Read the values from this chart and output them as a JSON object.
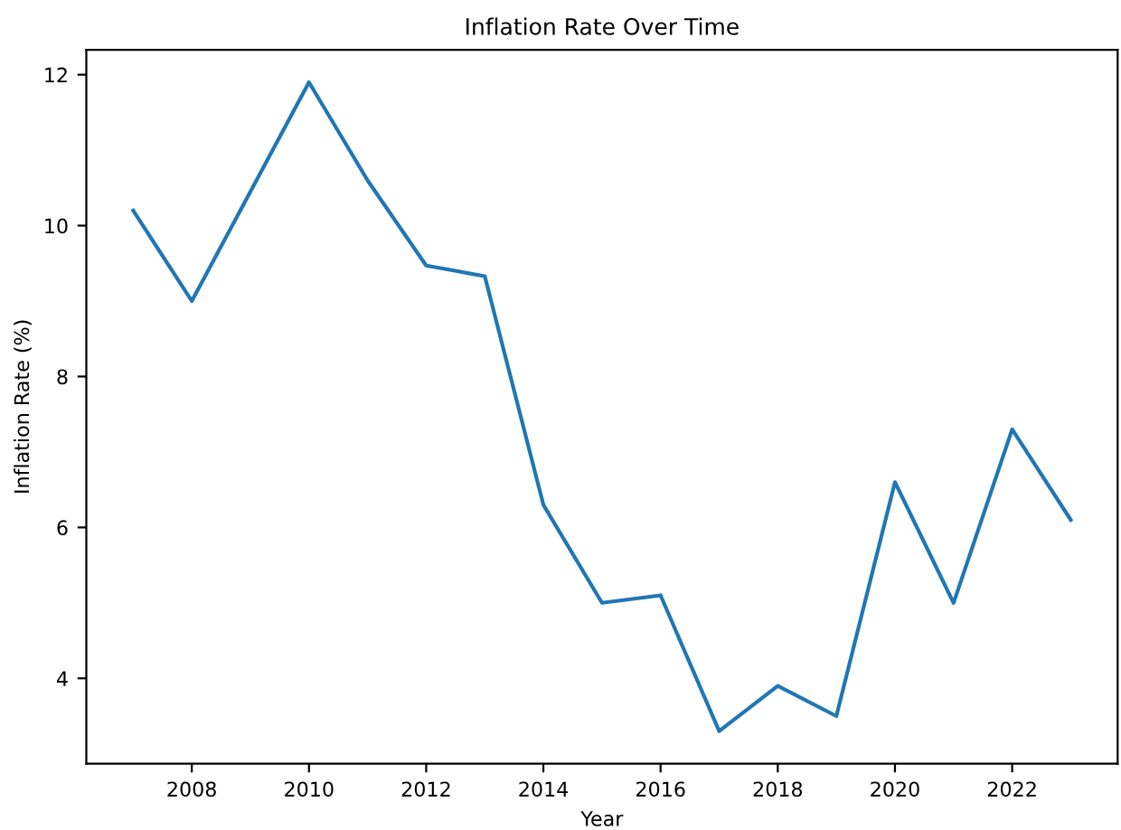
{
  "chart_data": {
    "type": "line",
    "title": "Inflation Rate Over Time",
    "xlabel": "Year",
    "ylabel": "Inflation Rate (%)",
    "x": [
      2007,
      2008,
      2009,
      2010,
      2011,
      2012,
      2013,
      2014,
      2015,
      2016,
      2017,
      2018,
      2019,
      2020,
      2021,
      2022,
      2023
    ],
    "series": [
      {
        "color": "#1f77b4",
        "values": [
          10.2,
          9.0,
          10.45,
          11.9,
          10.6,
          9.47,
          9.33,
          6.3,
          5.0,
          5.1,
          3.3,
          3.9,
          3.5,
          6.6,
          5.0,
          7.3,
          6.1
        ]
      }
    ],
    "xlim": [
      2006.2,
      2023.8
    ],
    "ylim": [
      2.87,
      12.33
    ],
    "xticks": [
      2008,
      2010,
      2012,
      2014,
      2016,
      2018,
      2020,
      2022
    ],
    "yticks": [
      4,
      6,
      8,
      10,
      12
    ]
  }
}
